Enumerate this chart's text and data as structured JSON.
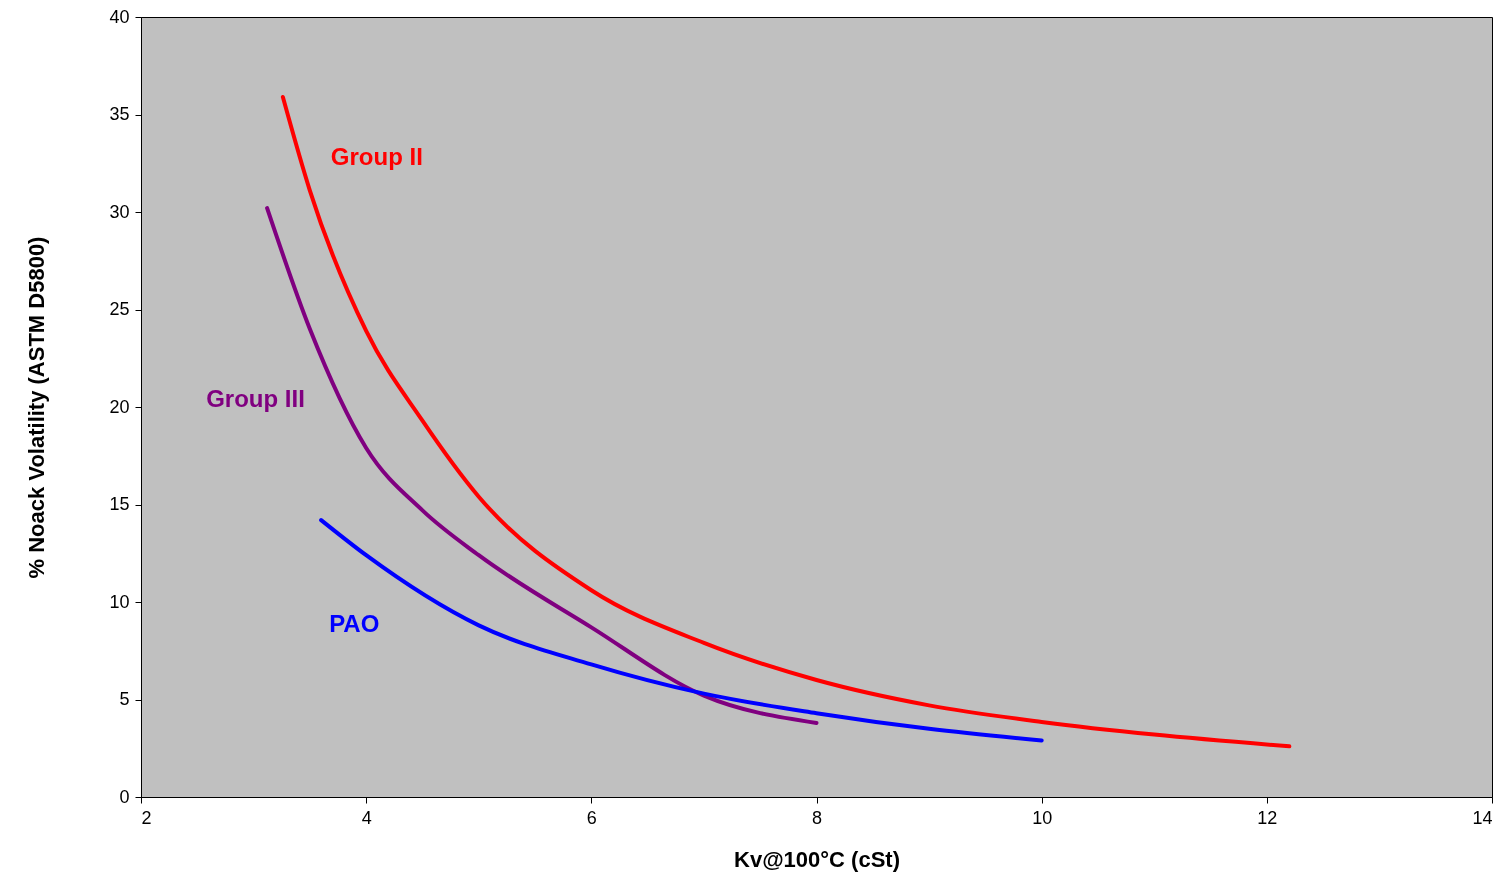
{
  "chart_data": {
    "type": "line",
    "xlabel": "Kv@100°C (cSt)",
    "ylabel": "% Noack Volatility (ASTM D5800)",
    "xlim": [
      2,
      14
    ],
    "xticks": [
      2,
      4,
      6,
      8,
      10,
      12,
      14
    ],
    "ylim": [
      0,
      40
    ],
    "yticks": [
      0,
      5,
      10,
      15,
      20,
      25,
      30,
      35,
      40
    ],
    "grid": false,
    "marker": "none",
    "line_style": "solid",
    "series": [
      {
        "name": "Group II",
        "color": "#ff0000",
        "x": [
          3.26,
          3.5,
          4,
          4.5,
          5,
          6,
          7,
          8,
          9,
          10,
          11,
          12.2
        ],
        "values": [
          35.9,
          31.1,
          23.9,
          19.3,
          15.4,
          10.6,
          7.9,
          6.0,
          4.7,
          3.85,
          3.2,
          2.6
        ]
      },
      {
        "name": "Group III",
        "color": "#800080",
        "x": [
          3.12,
          3.5,
          4,
          4.5,
          5,
          6,
          7,
          8
        ],
        "values": [
          30.2,
          24.0,
          17.9,
          14.7,
          12.4,
          8.7,
          5.2,
          3.8
        ]
      },
      {
        "name": "PAO",
        "color": "#0000ff",
        "x": [
          3.6,
          4,
          5,
          6,
          7,
          8,
          9,
          10
        ],
        "values": [
          14.2,
          12.4,
          8.8,
          6.8,
          5.3,
          4.3,
          3.5,
          2.9
        ]
      }
    ]
  }
}
